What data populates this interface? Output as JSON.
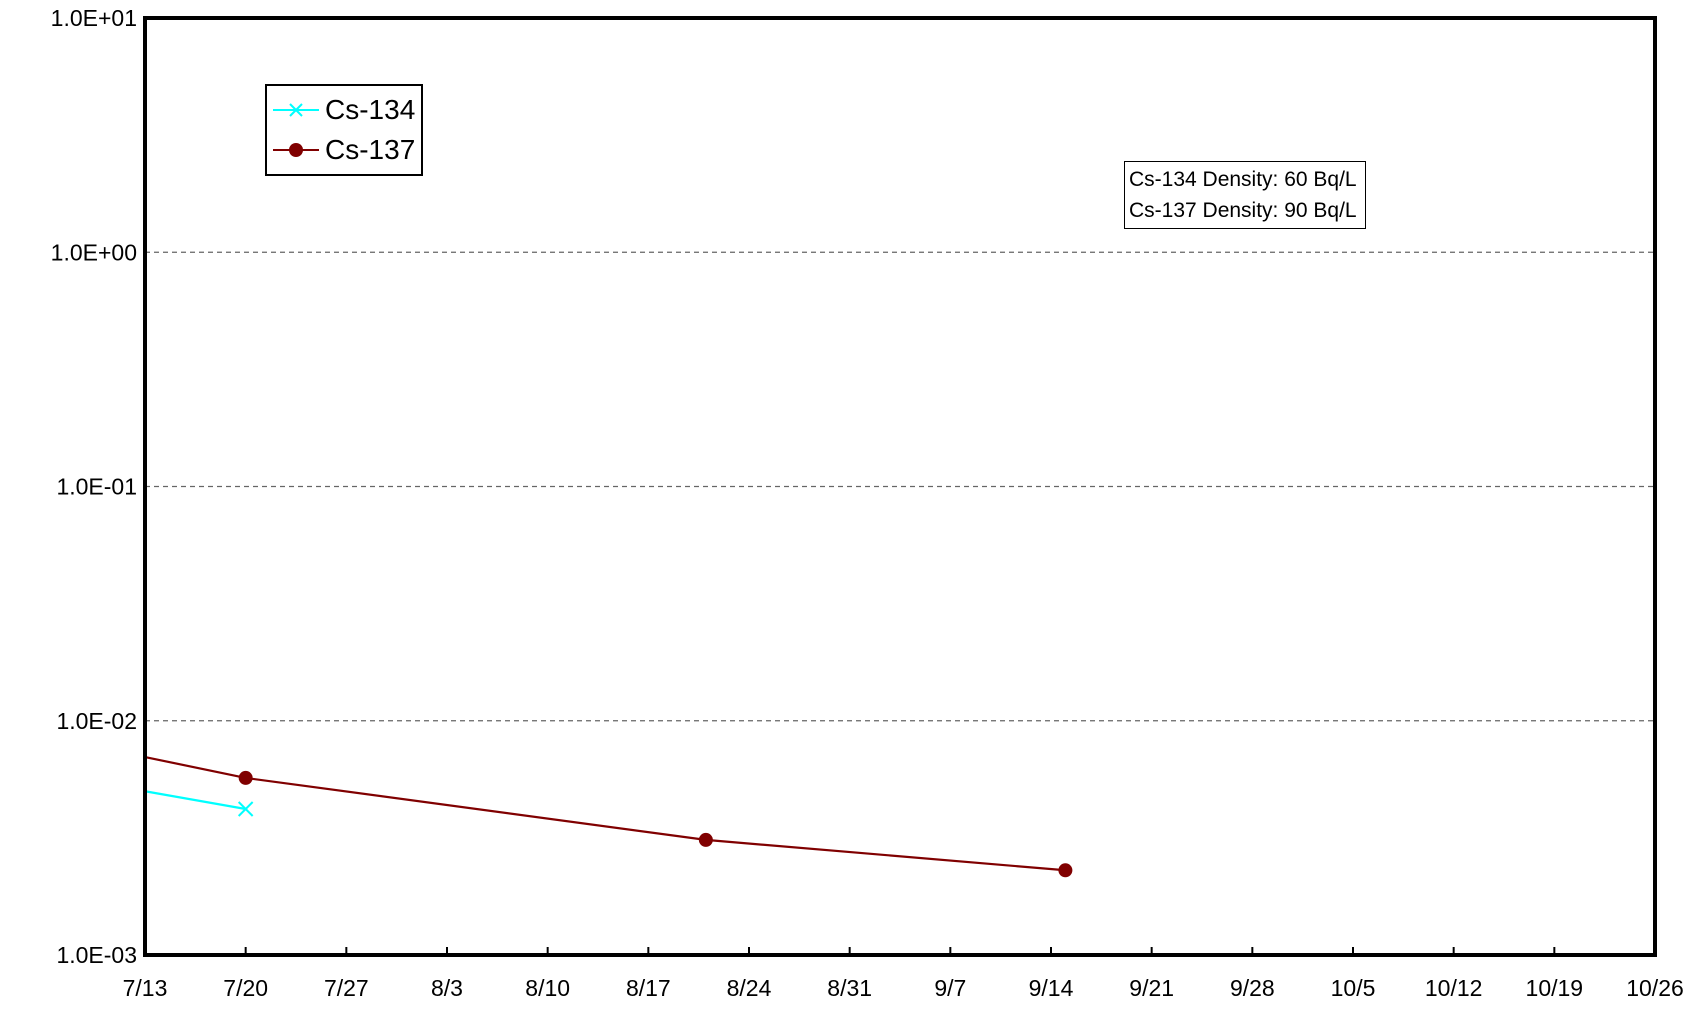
{
  "chart_data": {
    "type": "line",
    "y_scale": "log",
    "ylim": [
      0.001,
      10
    ],
    "y_tick_labels": [
      "1.0E-03",
      "1.0E-02",
      "1.0E-01",
      "1.0E+00",
      "1.0E+01"
    ],
    "x_tick_labels": [
      "7/13",
      "7/20",
      "7/27",
      "8/3",
      "8/10",
      "8/17",
      "8/24",
      "8/31",
      "9/7",
      "9/14",
      "9/21",
      "9/28",
      "10/5",
      "10/12",
      "10/19",
      "10/26"
    ],
    "xlim": [
      "7/13",
      "10/26"
    ],
    "grid": "horizontal dashed",
    "series": [
      {
        "name": "Cs-134",
        "color": "#00ffff",
        "marker": "x",
        "points": [
          {
            "x": "7/13",
            "y": 0.005,
            "marker": false
          },
          {
            "x": "7/20",
            "y": 0.0042,
            "marker": true
          }
        ]
      },
      {
        "name": "Cs-137",
        "color": "#800000",
        "marker": "circle",
        "points": [
          {
            "x": "7/13",
            "y": 0.007,
            "marker": false
          },
          {
            "x": "7/20",
            "y": 0.0057,
            "marker": true
          },
          {
            "x": "8/21",
            "y": 0.0031,
            "marker": true
          },
          {
            "x": "9/15",
            "y": 0.0023,
            "marker": true
          }
        ]
      }
    ],
    "legend": {
      "position": "top-left",
      "entries": [
        "Cs-134",
        "Cs-137"
      ]
    },
    "annotation": {
      "position": "top-right",
      "lines": [
        "Cs-134 Density: 60 Bq/L",
        "Cs-137 Density: 90 Bq/L"
      ]
    }
  }
}
